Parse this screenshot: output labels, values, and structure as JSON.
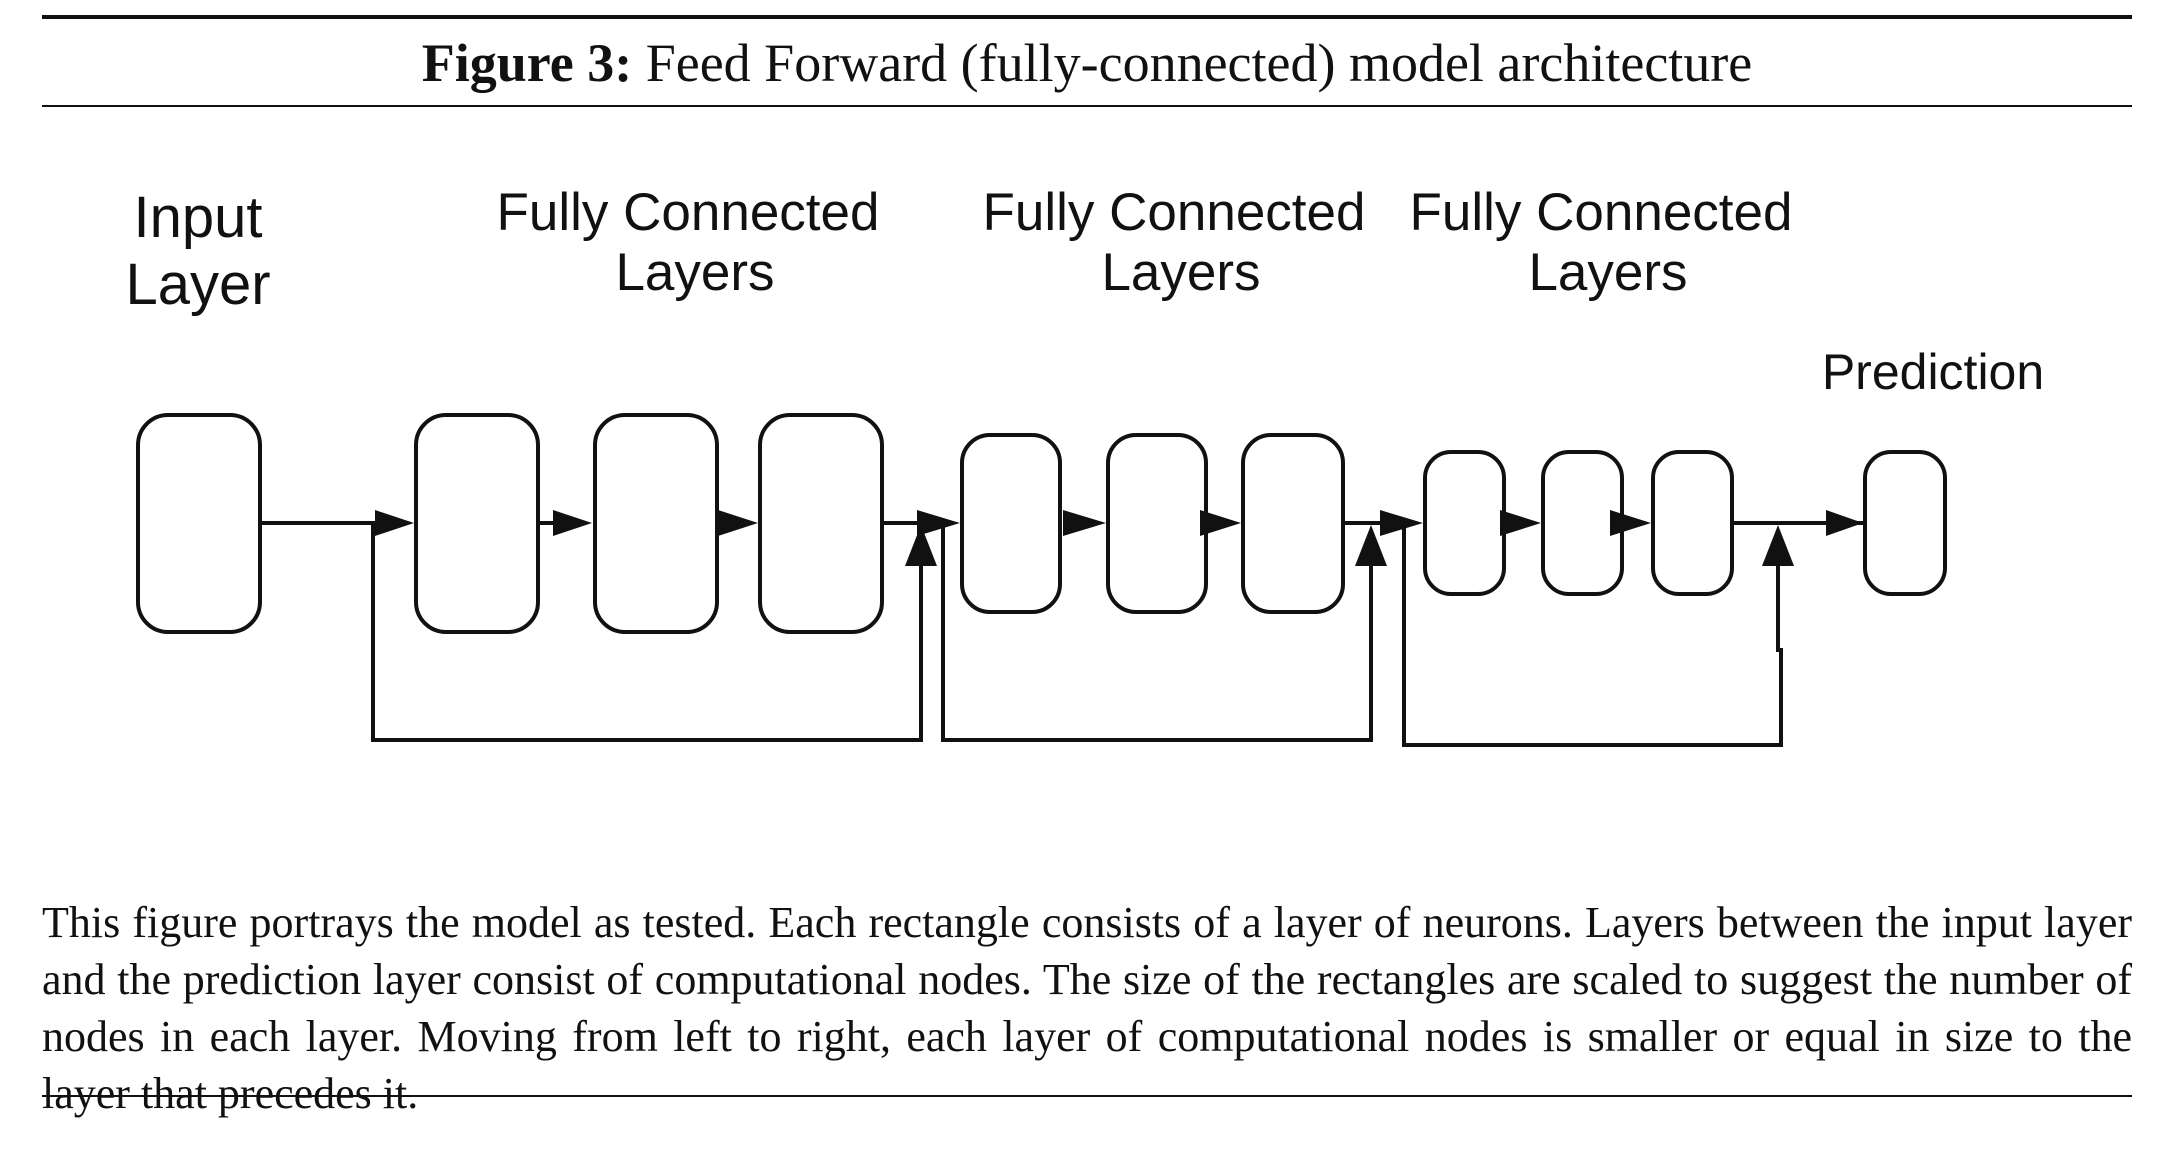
{
  "figure": {
    "label": "Figure 3:",
    "title": "Feed Forward (fully-connected) model architecture"
  },
  "diagram": {
    "labels": {
      "input_line1": "Input",
      "input_line2": "Layer",
      "group1_line1": "Fully Connected",
      "group1_line2": "Layers",
      "group2_line1": "Fully Connected",
      "group2_line2": "Layers",
      "group3_line1": "Fully Connected",
      "group3_line2": "Layers",
      "prediction": "Prediction"
    }
  },
  "description": "This figure portrays the model as tested. Each rectangle consists of a layer of neurons. Layers between the input layer and the prediction layer consist of computational nodes. The size of the rectangles are scaled to suggest the number of nodes in each layer. Moving from left to right, each layer of computational nodes is smaller or equal in size to the layer that precedes it."
}
